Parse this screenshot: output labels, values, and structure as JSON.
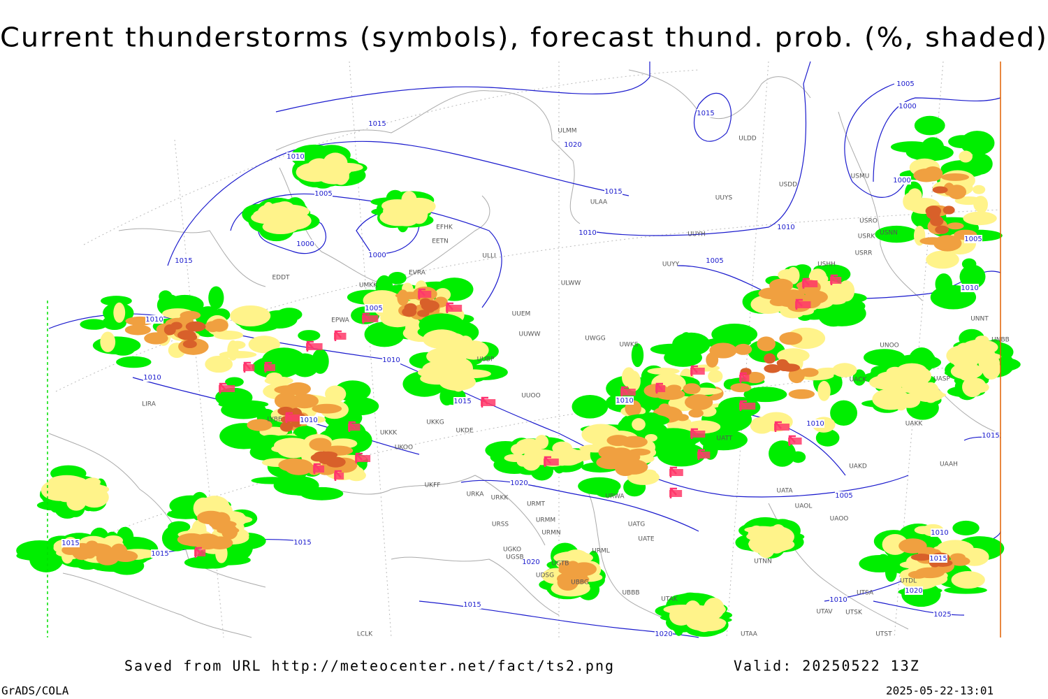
{
  "header": {
    "title": "Current thunderstorms (symbols), forecast thund. prob. (%, shaded)"
  },
  "footer": {
    "source": "Saved from URL http://meteocenter.net/fact/ts2.png",
    "valid": "Valid: 20250522 13Z",
    "software": "GrADS/COLA",
    "timestamp": "2025-05-22-13:01"
  },
  "isobar_labels": [
    1015,
    1010,
    1005,
    1000,
    1000,
    1015,
    1010,
    1005,
    1010,
    1010,
    1010,
    1015,
    1010,
    1020,
    1015,
    1010,
    1015,
    1005,
    1000,
    1000,
    1010,
    1005,
    1005,
    1010,
    1010,
    1015,
    1005,
    1020,
    1015,
    1015,
    1015,
    1020,
    1015,
    1010,
    1015,
    1020,
    1010,
    1025,
    1020
  ],
  "station_labels": [
    "ULMM",
    "ULDD",
    "USDD",
    "USMU",
    "ULAA",
    "UUYS",
    "UUYH",
    "USRO",
    "USRK",
    "USNN",
    "USRR",
    "EFHK",
    "EETN",
    "ULLI",
    "EVRA",
    "UMKK",
    "EDDT",
    "UUYY",
    "ULWW",
    "USHH",
    "UUEM",
    "UUWW",
    "UWGG",
    "UWKS",
    "UUBP",
    "UUOO",
    "UNNT",
    "UNBB",
    "UNOO",
    "UASP",
    "UACK",
    "UATT",
    "UAKK",
    "UAKD",
    "UAAH",
    "UATA",
    "UAOL",
    "UAOO",
    "UTNN",
    "LIRA",
    "EPWA",
    "UKFF",
    "URKA",
    "URKK",
    "URMT",
    "URMM",
    "URMN",
    "URSS",
    "UGKO",
    "UGSB",
    "UGTB",
    "UDSG",
    "UBBG",
    "URML",
    "UATE",
    "UATG",
    "URWA",
    "UBBB",
    "UTAK",
    "UTAV",
    "UTSK",
    "UTSA",
    "UTDL",
    "UTST",
    "UTAA",
    "LCLK",
    "UKKK",
    "UKOO",
    "UKDE",
    "UKKG",
    "LYBE"
  ]
}
